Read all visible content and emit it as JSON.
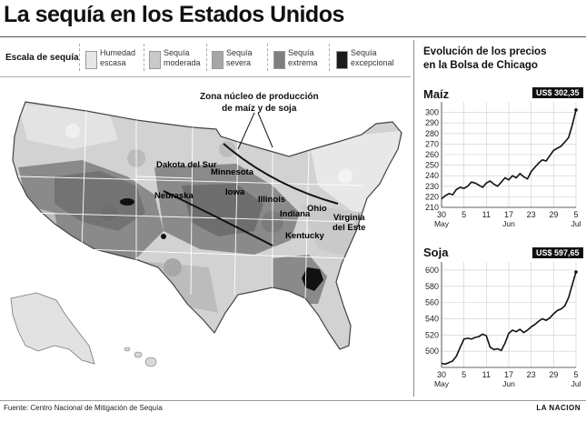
{
  "title": "La sequía en los Estados Unidos",
  "legend": {
    "title": "Escala de sequía",
    "items": [
      {
        "label_1": "Humedad",
        "label_2": "escasa",
        "color": "#e6e6e6"
      },
      {
        "label_1": "Sequía",
        "label_2": "moderada",
        "color": "#c9c9c9"
      },
      {
        "label_1": "Sequía",
        "label_2": "severa",
        "color": "#a6a6a6"
      },
      {
        "label_1": "Sequía",
        "label_2": "extrema",
        "color": "#7e7e7e"
      },
      {
        "label_1": "Sequía",
        "label_2": "excepcional",
        "color": "#1b1b1b"
      }
    ]
  },
  "map": {
    "zone_label_1": "Zona núcleo de producción",
    "zone_label_2": "de maíz y de soja",
    "states": [
      "Dakota del Sur",
      "Minnesota",
      "Nebraska",
      "Iowa",
      "Illinois",
      "Indiana",
      "Ohio",
      "Virginia",
      "del Este",
      "Kentucky"
    ]
  },
  "prices": {
    "title_1": "Evolución de los precios",
    "title_2": "en la Bolsa de Chicago"
  },
  "chart_data": [
    {
      "type": "line",
      "title": "Maíz",
      "badge": "US$ 302,35",
      "ylim": [
        210,
        310
      ],
      "yticks": [
        210,
        220,
        230,
        240,
        250,
        260,
        270,
        280,
        290,
        300
      ],
      "xticks": [
        {
          "day": "30",
          "month": "May"
        },
        {
          "day": "5",
          "month": ""
        },
        {
          "day": "11",
          "month": ""
        },
        {
          "day": "17",
          "month": "Jun"
        },
        {
          "day": "23",
          "month": ""
        },
        {
          "day": "29",
          "month": ""
        },
        {
          "day": "5",
          "month": "Jul"
        }
      ],
      "x": [
        0,
        1,
        2,
        3,
        4,
        5,
        6,
        7,
        8,
        9,
        10,
        11,
        12,
        13,
        14,
        15,
        16,
        17,
        18,
        19,
        20,
        21,
        22,
        23,
        24,
        25,
        26,
        27,
        28,
        29,
        30,
        31,
        32,
        33,
        34,
        35,
        36
      ],
      "values": [
        218,
        221,
        223,
        222,
        227,
        229,
        228,
        230,
        234,
        233,
        231,
        229,
        233,
        235,
        232,
        230,
        234,
        238,
        236,
        240,
        238,
        242,
        239,
        237,
        244,
        248,
        252,
        255,
        254,
        259,
        264,
        266,
        268,
        272,
        276,
        288,
        302.35
      ]
    },
    {
      "type": "line",
      "title": "Soja",
      "badge": "US$ 597,65",
      "ylim": [
        480,
        610
      ],
      "yticks": [
        500,
        520,
        540,
        560,
        580,
        600
      ],
      "xticks": [
        {
          "day": "30",
          "month": "May"
        },
        {
          "day": "5",
          "month": ""
        },
        {
          "day": "11",
          "month": ""
        },
        {
          "day": "17",
          "month": "Jun"
        },
        {
          "day": "23",
          "month": ""
        },
        {
          "day": "29",
          "month": ""
        },
        {
          "day": "5",
          "month": "Jul"
        }
      ],
      "x": [
        0,
        1,
        2,
        3,
        4,
        5,
        6,
        7,
        8,
        9,
        10,
        11,
        12,
        13,
        14,
        15,
        16,
        17,
        18,
        19,
        20,
        21,
        22,
        23,
        24,
        25,
        26,
        27,
        28,
        29,
        30,
        31,
        32,
        33,
        34,
        35,
        36
      ],
      "values": [
        485,
        484,
        486,
        488,
        494,
        505,
        515,
        516,
        515,
        517,
        518,
        521,
        519,
        505,
        502,
        503,
        501,
        510,
        522,
        526,
        524,
        527,
        523,
        526,
        530,
        533,
        537,
        540,
        538,
        541,
        546,
        550,
        552,
        556,
        566,
        582,
        597.65
      ]
    }
  ],
  "footer": {
    "source": "Fuente: Centro Nacional de Mitigación de Sequía",
    "brand": "LA NACION"
  }
}
